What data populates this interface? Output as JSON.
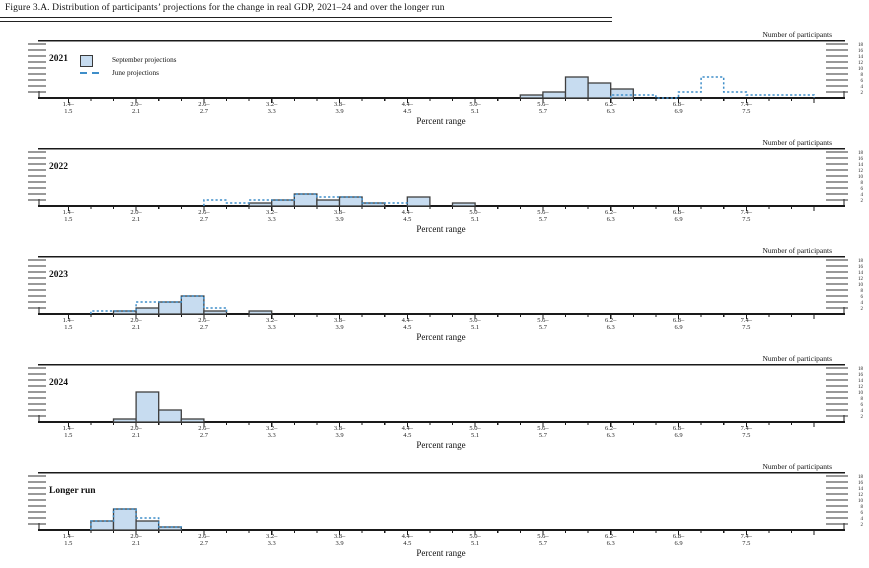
{
  "page": {
    "title": "Figure 3.A. Distribution of participants’ projections for the change in real GDP, 2021–24 and over the longer run"
  },
  "legend": {
    "september_label": "September projections",
    "june_label": "June projections"
  },
  "axis": {
    "y_label": "Number of participants",
    "x_label": "Percent range",
    "y_ticks": [
      2,
      4,
      6,
      8,
      10,
      12,
      14,
      16,
      18
    ],
    "ylim": [
      0,
      18
    ],
    "x_min": 1.4,
    "x_max": 8.0,
    "bin_width": 0.2,
    "x_tick_labels": [
      [
        "1.4–",
        "1.5"
      ],
      [
        "2.0–",
        "2.1"
      ],
      [
        "2.6–",
        "2.7"
      ],
      [
        "3.2–",
        "3.3"
      ],
      [
        "3.8–",
        "3.9"
      ],
      [
        "4.4–",
        "4.5"
      ],
      [
        "5.0–",
        "5.1"
      ],
      [
        "5.6–",
        "5.7"
      ],
      [
        "6.2–",
        "6.3"
      ],
      [
        "6.8–",
        "6.9"
      ],
      [
        "7.4–",
        "7.5"
      ]
    ]
  },
  "colors": {
    "bar_fill": "#c7dcf0",
    "bar_border": "#3f3f3f",
    "june_line": "#3f8ec9",
    "axis_line": "#1a1a1a"
  },
  "chart_data": [
    {
      "panel": "2021",
      "type": "histogram",
      "series": [
        {
          "name": "September projections",
          "style": "bar",
          "bin_starts": [
            5.4,
            5.6,
            5.8,
            6.0,
            6.2
          ],
          "counts": [
            1,
            2,
            7,
            5,
            3
          ]
        },
        {
          "name": "June projections",
          "style": "dashed-step",
          "bin_starts": [
            6.2,
            6.4,
            6.6,
            6.8,
            7.0,
            7.2,
            7.4,
            7.6,
            7.8
          ],
          "counts": [
            1,
            1,
            0,
            2,
            7,
            2,
            1,
            1,
            1
          ]
        }
      ]
    },
    {
      "panel": "2022",
      "type": "histogram",
      "series": [
        {
          "name": "September projections",
          "style": "bar",
          "bin_starts": [
            3.0,
            3.2,
            3.4,
            3.6,
            3.8,
            4.0,
            4.4,
            4.8
          ],
          "counts": [
            1,
            2,
            4,
            2,
            3,
            1,
            3,
            1
          ]
        },
        {
          "name": "June projections",
          "style": "dashed-step",
          "bin_starts": [
            2.6,
            2.8,
            3.0,
            3.2,
            3.4,
            3.6,
            3.8,
            4.0,
            4.2
          ],
          "counts": [
            2,
            1,
            2,
            2,
            4,
            3,
            3,
            1,
            1
          ]
        }
      ]
    },
    {
      "panel": "2023",
      "type": "histogram",
      "series": [
        {
          "name": "September projections",
          "style": "bar",
          "bin_starts": [
            1.8,
            2.0,
            2.2,
            2.4,
            2.6,
            3.0
          ],
          "counts": [
            1,
            2,
            4,
            6,
            1,
            1
          ]
        },
        {
          "name": "June projections",
          "style": "dashed-step",
          "bin_starts": [
            1.6,
            1.8,
            2.0,
            2.2,
            2.4,
            2.6
          ],
          "counts": [
            1,
            1,
            4,
            4,
            6,
            2
          ]
        }
      ]
    },
    {
      "panel": "2024",
      "type": "histogram",
      "series": [
        {
          "name": "September projections",
          "style": "bar",
          "bin_starts": [
            1.8,
            2.0,
            2.2,
            2.4
          ],
          "counts": [
            1,
            10,
            4,
            1
          ]
        }
      ]
    },
    {
      "panel": "Longer run",
      "type": "histogram",
      "series": [
        {
          "name": "September projections",
          "style": "bar",
          "bin_starts": [
            1.6,
            1.8,
            2.0,
            2.2
          ],
          "counts": [
            3,
            7,
            3,
            1
          ]
        },
        {
          "name": "June projections",
          "style": "dashed-step",
          "bin_starts": [
            1.6,
            1.8,
            2.0,
            2.2
          ],
          "counts": [
            3,
            7,
            4,
            1
          ]
        }
      ]
    }
  ]
}
